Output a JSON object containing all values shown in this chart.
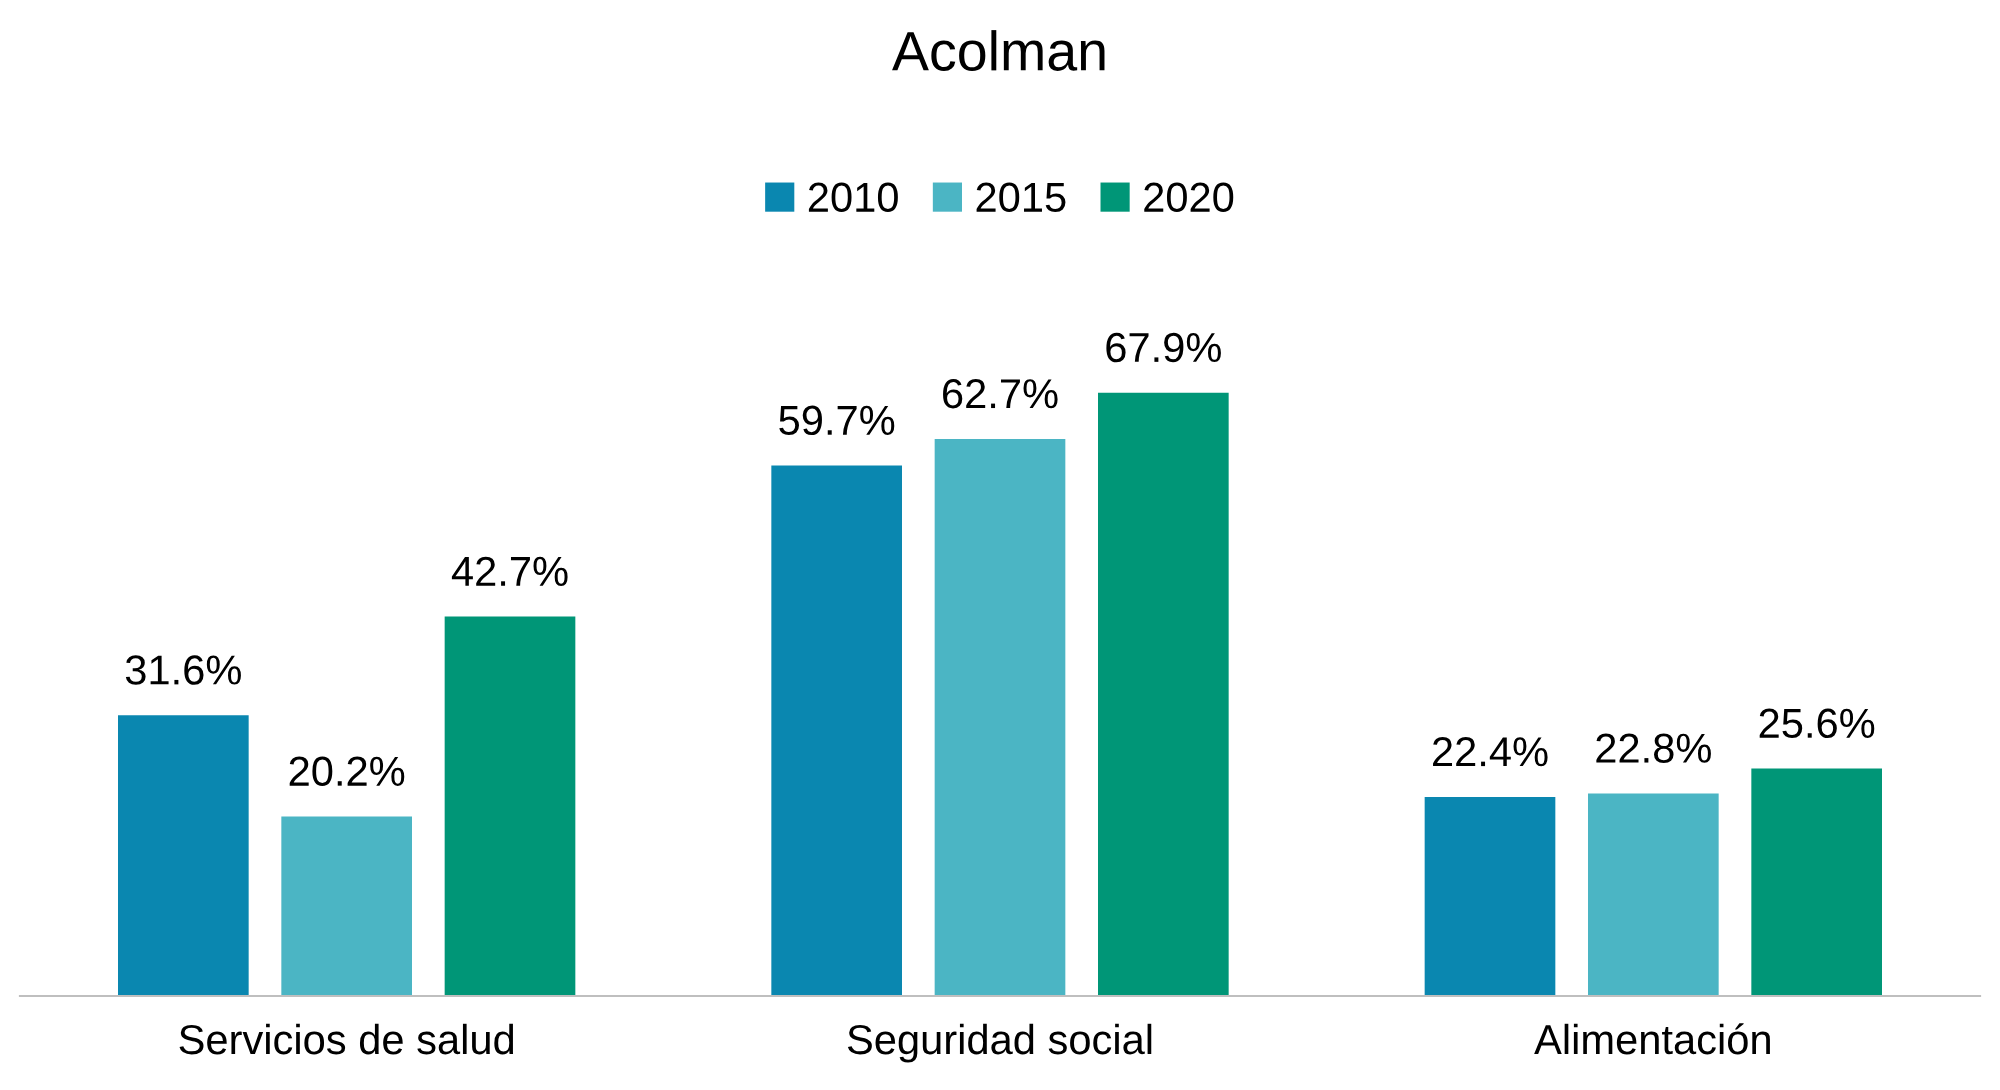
{
  "chart_data": {
    "type": "bar",
    "title": "Acolman",
    "categories": [
      "Servicios de salud",
      "Seguridad social",
      "Alimentación"
    ],
    "series": [
      {
        "name": "2010",
        "color": "#0a87b0",
        "values": [
          31.6,
          59.7,
          22.4
        ],
        "value_labels": [
          "31.6%",
          "59.7%",
          "22.4%"
        ]
      },
      {
        "name": "2015",
        "color": "#4bb5c4",
        "values": [
          20.2,
          62.7,
          22.8
        ],
        "value_labels": [
          "20.2%",
          "62.7%",
          "22.8%"
        ]
      },
      {
        "name": "2020",
        "color": "#009677",
        "values": [
          42.7,
          67.9,
          25.6
        ],
        "value_labels": [
          "42.7%",
          "67.9%",
          "25.6%"
        ]
      }
    ],
    "legend": "top"
  }
}
